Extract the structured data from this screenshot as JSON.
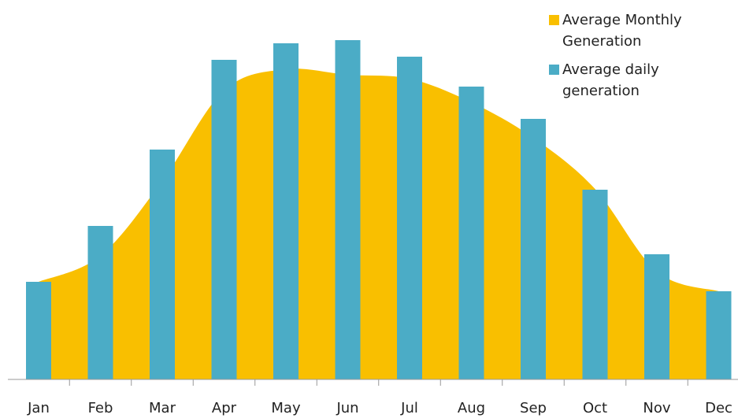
{
  "chart_data": {
    "type": "bar",
    "categories": [
      "Jan",
      "Feb",
      "Mar",
      "Apr",
      "May",
      "Jun",
      "Jul",
      "Aug",
      "Sep",
      "Oct",
      "Nov",
      "Dec"
    ],
    "series": [
      {
        "name": "Average Monthly Generation",
        "type": "area",
        "color": "#f9bf00",
        "values": [
          124,
          157,
          252,
          367,
          394,
          387,
          382,
          352,
          307,
          242,
          137,
          112
        ]
      },
      {
        "name": "Average daily generation",
        "type": "bar",
        "color": "#4bacc6",
        "values": [
          124,
          195,
          292,
          406,
          427,
          431,
          410,
          372,
          331,
          241,
          159,
          112
        ]
      }
    ],
    "ylim": [
      0,
      450
    ],
    "legend": "upper right"
  }
}
